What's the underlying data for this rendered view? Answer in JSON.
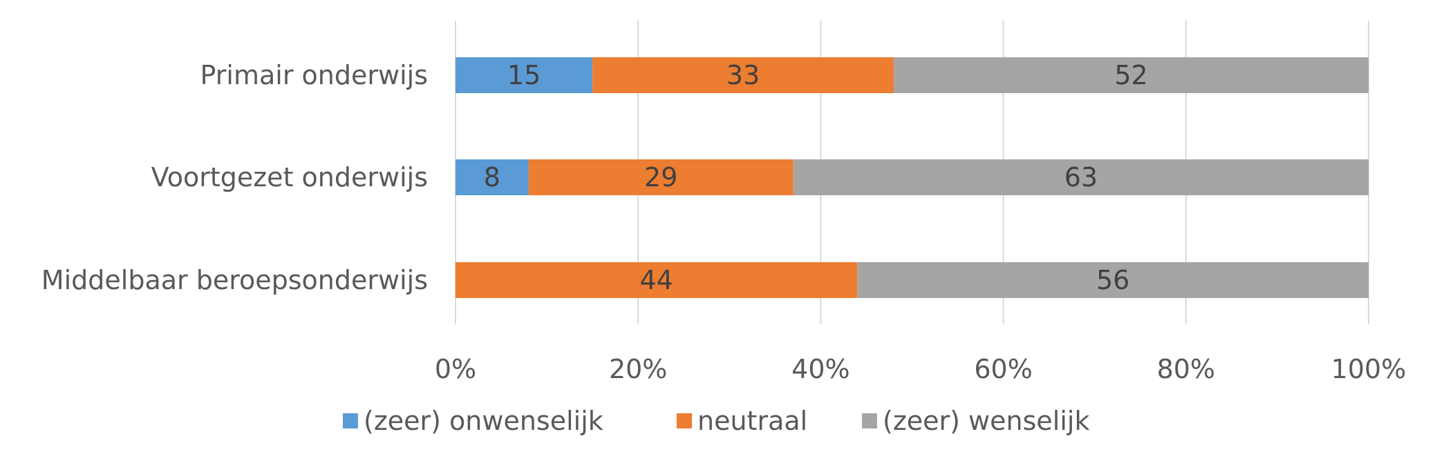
{
  "chart_data": {
    "type": "bar",
    "orientation": "horizontal",
    "stacked": "percent",
    "categories": [
      "Primair onderwijs",
      "Voortgezet onderwijs",
      "Middelbaar beroepsonderwijs"
    ],
    "series": [
      {
        "name": "(zeer) onwenselijk",
        "color": "#5B9BD5",
        "values": [
          15,
          8,
          0
        ]
      },
      {
        "name": "neutraal",
        "color": "#ED7D31",
        "values": [
          33,
          29,
          44
        ]
      },
      {
        "name": "(zeer) wenselijk",
        "color": "#A5A5A5",
        "values": [
          52,
          63,
          56
        ]
      }
    ],
    "xticks": [
      "0%",
      "20%",
      "40%",
      "60%",
      "80%",
      "100%"
    ],
    "xlim": [
      0,
      100
    ],
    "grid": true,
    "legend_position": "bottom"
  }
}
